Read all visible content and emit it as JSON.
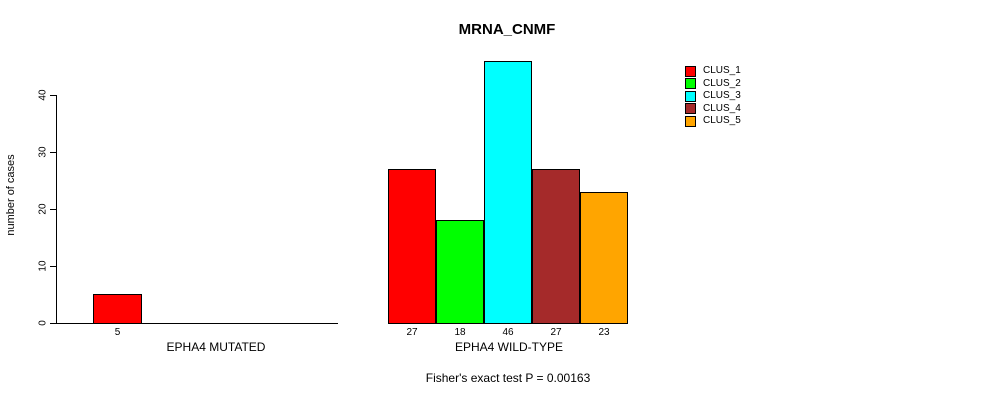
{
  "chart_data": {
    "type": "bar",
    "title": "MRNA_CNMF",
    "ylabel": "number of cases",
    "xlabel": "",
    "yticks": [
      0,
      10,
      20,
      30,
      40
    ],
    "ylim": [
      0,
      46
    ],
    "grid": false,
    "legend_position": "top-right",
    "annotation": "Fisher's exact test P = 0.00163",
    "groups": [
      {
        "label": "EPHA4 MUTATED",
        "bars": [
          {
            "cluster": "CLUS_1",
            "value": 5,
            "color": "#FF0000"
          }
        ]
      },
      {
        "label": "EPHA4 WILD-TYPE",
        "bars": [
          {
            "cluster": "CLUS_1",
            "value": 27,
            "color": "#FF0000"
          },
          {
            "cluster": "CLUS_2",
            "value": 18,
            "color": "#00FF00"
          },
          {
            "cluster": "CLUS_3",
            "value": 46,
            "color": "#00FFFF"
          },
          {
            "cluster": "CLUS_4",
            "value": 27,
            "color": "#A52A2A"
          },
          {
            "cluster": "CLUS_5",
            "value": 23,
            "color": "#FFA500"
          }
        ]
      }
    ],
    "legend": [
      {
        "label": "CLUS_1",
        "color": "#FF0000"
      },
      {
        "label": "CLUS_2",
        "color": "#00FF00"
      },
      {
        "label": "CLUS_3",
        "color": "#00FFFF"
      },
      {
        "label": "CLUS_4",
        "color": "#A52A2A"
      },
      {
        "label": "CLUS_5",
        "color": "#FFA500"
      }
    ],
    "colors": {
      "axis": "#000000",
      "background": "#FFFFFF"
    }
  }
}
